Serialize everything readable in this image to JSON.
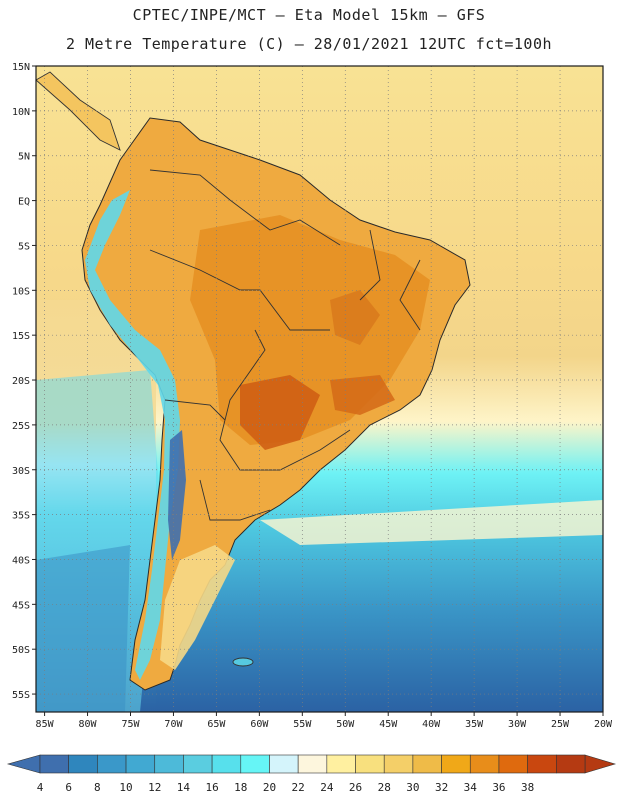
{
  "header": {
    "line1": "CPTEC/INPE/MCT –  Eta Model 15km – GFS",
    "line2": "2 Metre Temperature (C) – 28/01/2021 12UTC fct=100h"
  },
  "map": {
    "region": "South America",
    "variable": "2 Metre Temperature",
    "units": "C",
    "lat_labels": [
      "15N",
      "10N",
      "5N",
      "EQ",
      "5S",
      "10S",
      "15S",
      "20S",
      "25S",
      "30S",
      "35S",
      "40S",
      "45S",
      "50S",
      "55S"
    ],
    "lon_labels": [
      "85W",
      "80W",
      "75W",
      "70W",
      "65W",
      "60W",
      "55W",
      "50W",
      "45W",
      "40W",
      "35W",
      "30W",
      "25W",
      "20W"
    ],
    "lat_range": [
      15,
      -57
    ],
    "lon_range": [
      -86,
      -20
    ]
  },
  "colorbar": {
    "labels": [
      "4",
      "6",
      "8",
      "10",
      "12",
      "14",
      "16",
      "18",
      "20",
      "22",
      "24",
      "26",
      "28",
      "30",
      "32",
      "34",
      "36",
      "38"
    ],
    "colors": [
      "#3f6fae",
      "#2f86bd",
      "#3a98c9",
      "#41a9d2",
      "#4dbad9",
      "#5acde0",
      "#57e0ec",
      "#66f5f6",
      "#d4f4fb",
      "#fdf6dd",
      "#fff0a0",
      "#f8e07e",
      "#f4cf68",
      "#efbb48",
      "#f0a818",
      "#e88d1a",
      "#df6a0e",
      "#c9470f",
      "#b53a12"
    ],
    "left_arrow_color": "#3f6fae",
    "right_arrow_color": "#b53a12"
  },
  "palette": {
    "ocean_cold": "#2e64a4",
    "ocean_cool": "#4bbfd8",
    "ocean_mild": "#63f1f5",
    "ocean_warm": "#f6d98a",
    "ocean_tropic": "#f6d37a",
    "land_hot": "#e9a13a",
    "land_hottest": "#d56c1c",
    "andes": "#5fd7ea"
  }
}
